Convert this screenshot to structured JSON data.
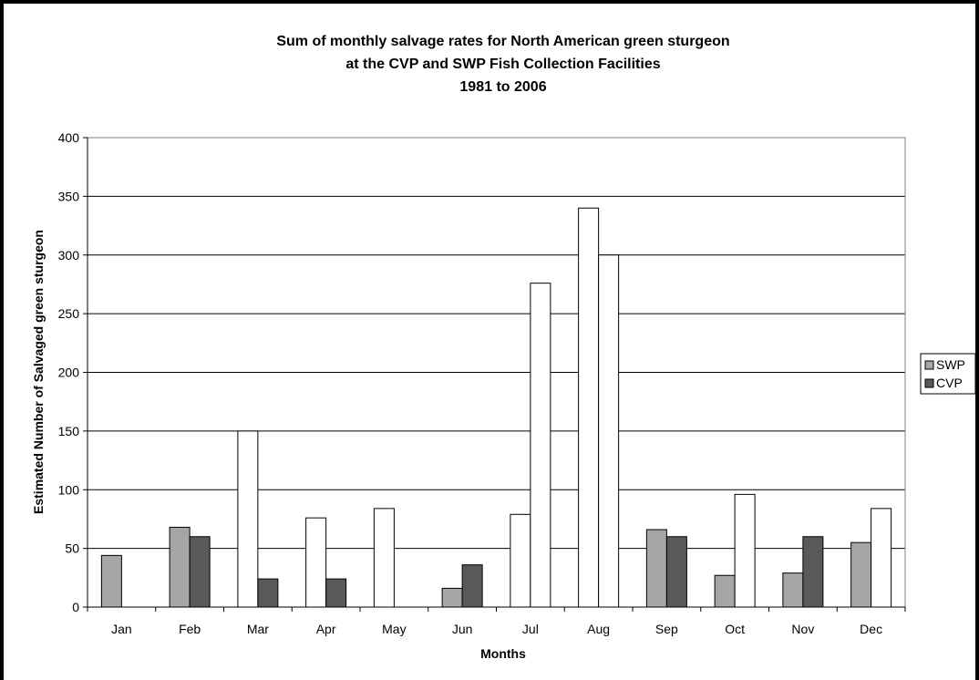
{
  "chart_data": {
    "type": "bar",
    "title_lines": [
      "Sum of monthly salvage rates for North American green sturgeon",
      "at the CVP and SWP Fish Collection Facilities",
      "1981 to 2006"
    ],
    "xlabel": "Months",
    "ylabel": "Estimated  Number of Salvaged green sturgeon",
    "ylim": [
      0,
      400
    ],
    "yticks": [
      0,
      50,
      100,
      150,
      200,
      250,
      300,
      350,
      400
    ],
    "grid": true,
    "legend_position": "right",
    "categories": [
      "Jan",
      "Feb",
      "Mar",
      "Apr",
      "May",
      "Jun",
      "Jul",
      "Aug",
      "Sep",
      "Oct",
      "Nov",
      "Dec"
    ],
    "series": [
      {
        "name": "SWP",
        "color": "#a6a6a6",
        "values": [
          44,
          68,
          150,
          76,
          84,
          16,
          79,
          340,
          66,
          27,
          29,
          55
        ]
      },
      {
        "name": "CVP",
        "color": "#595959",
        "values": [
          0,
          60,
          24,
          24,
          0,
          36,
          276,
          300,
          60,
          96,
          60,
          84
        ]
      }
    ],
    "unfilled_bar_indices": {
      "SWP": [
        2,
        3,
        4,
        6,
        7
      ],
      "CVP": [
        6,
        7,
        9,
        11
      ]
    }
  }
}
